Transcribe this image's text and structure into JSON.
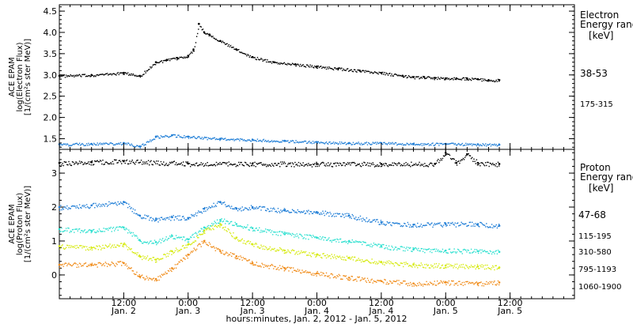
{
  "chart_data": [
    {
      "type": "scatter",
      "ylabel_lines": [
        "ACE EPAM",
        "log(Electron Flux)",
        "[1/(cm²s ster MeV)]"
      ],
      "yticks": [
        "1.5",
        "2.0",
        "2.5",
        "3.0",
        "3.5",
        "4.0",
        "4.5"
      ],
      "ylim": [
        1.25,
        4.65
      ],
      "legend_title": [
        "Electron",
        "Energy range",
        "[keV]"
      ],
      "series": [
        {
          "name": "38-53",
          "color": "#000000",
          "x": [
            0,
            6,
            12,
            15,
            18,
            20,
            22,
            24,
            25,
            26,
            27,
            28,
            30,
            33,
            36,
            40,
            44,
            48,
            52,
            56,
            60,
            64,
            66,
            68,
            70,
            72,
            74,
            76,
            78,
            80,
            82
          ],
          "y": [
            2.98,
            3.0,
            3.05,
            2.98,
            3.3,
            3.35,
            3.4,
            3.45,
            3.6,
            4.2,
            4.0,
            3.95,
            3.8,
            3.6,
            3.42,
            3.3,
            3.25,
            3.2,
            3.15,
            3.1,
            3.05,
            2.98,
            2.95,
            2.95,
            2.93,
            2.92,
            2.92,
            2.92,
            2.9,
            2.88,
            2.88
          ]
        },
        {
          "name": "175-315",
          "color": "#1e7dd6",
          "x": [
            0,
            6,
            12,
            15,
            18,
            21,
            24,
            30,
            36,
            42,
            48,
            54,
            60,
            66,
            72,
            78,
            82
          ],
          "y": [
            1.37,
            1.38,
            1.4,
            1.32,
            1.55,
            1.58,
            1.55,
            1.5,
            1.48,
            1.45,
            1.42,
            1.4,
            1.4,
            1.38,
            1.38,
            1.37,
            1.36
          ]
        }
      ]
    },
    {
      "type": "scatter",
      "ylabel_lines": [
        "ACE EPAM",
        "log(Proton Flux)",
        "[1/(cm²s ster MeV)]"
      ],
      "yticks": [
        "0",
        "1",
        "2",
        "3"
      ],
      "ylim": [
        -0.7,
        3.7
      ],
      "legend_title": [
        "Proton",
        "Energy range",
        "[keV]"
      ],
      "series": [
        {
          "name": "47-68",
          "color": "#000000",
          "x": [
            0,
            6,
            12,
            24,
            36,
            48,
            60,
            70,
            72,
            74,
            76,
            78,
            82
          ],
          "y": [
            3.3,
            3.32,
            3.35,
            3.28,
            3.28,
            3.27,
            3.27,
            3.27,
            3.6,
            3.3,
            3.55,
            3.3,
            3.27
          ]
        },
        {
          "name": "115-195",
          "color": "#1e7dd6",
          "x": [
            0,
            6,
            12,
            15,
            18,
            21,
            24,
            27,
            30,
            33,
            36,
            42,
            48,
            54,
            60,
            66,
            72,
            78,
            82
          ],
          "y": [
            2.0,
            2.05,
            2.15,
            1.75,
            1.62,
            1.7,
            1.68,
            1.95,
            2.15,
            1.95,
            2.0,
            1.9,
            1.85,
            1.75,
            1.55,
            1.48,
            1.5,
            1.5,
            1.45
          ]
        },
        {
          "name": "310-580",
          "color": "#2ee0d0",
          "x": [
            0,
            6,
            12,
            15,
            18,
            21,
            24,
            27,
            30,
            33,
            36,
            42,
            48,
            54,
            60,
            66,
            72,
            78,
            82
          ],
          "y": [
            1.35,
            1.3,
            1.4,
            1.02,
            0.97,
            1.15,
            1.05,
            1.4,
            1.62,
            1.5,
            1.38,
            1.2,
            1.1,
            1.0,
            0.85,
            0.75,
            0.72,
            0.7,
            0.68
          ]
        },
        {
          "name": "795-1193",
          "color": "#d6ea10",
          "x": [
            0,
            6,
            12,
            15,
            18,
            21,
            24,
            27,
            30,
            33,
            36,
            42,
            48,
            54,
            60,
            66,
            72,
            78,
            82
          ],
          "y": [
            0.85,
            0.8,
            0.9,
            0.55,
            0.45,
            0.7,
            0.9,
            1.3,
            1.5,
            1.1,
            0.9,
            0.72,
            0.6,
            0.5,
            0.38,
            0.3,
            0.28,
            0.25,
            0.22
          ]
        },
        {
          "name": "1060-1900",
          "color": "#f08c1a",
          "x": [
            0,
            6,
            12,
            15,
            18,
            21,
            24,
            27,
            30,
            33,
            36,
            42,
            48,
            54,
            60,
            66,
            72,
            78,
            82
          ],
          "y": [
            0.3,
            0.3,
            0.35,
            -0.05,
            -0.12,
            0.2,
            0.6,
            1.0,
            0.7,
            0.55,
            0.35,
            0.2,
            0.05,
            -0.08,
            -0.18,
            -0.25,
            -0.22,
            -0.25,
            -0.22
          ]
        }
      ]
    }
  ],
  "time_axis": {
    "xlim": [
      0,
      96
    ],
    "major_ticks": [
      0,
      12,
      24,
      36,
      48,
      60,
      72,
      84,
      96
    ],
    "labels": [
      {
        "x": 12,
        "time": "12:00",
        "date": "Jan. 2"
      },
      {
        "x": 24,
        "time": "0:00",
        "date": "Jan. 3"
      },
      {
        "x": 36,
        "time": "12:00",
        "date": "Jan. 3"
      },
      {
        "x": 48,
        "time": "0:00",
        "date": "Jan. 4"
      },
      {
        "x": 60,
        "time": "12:00",
        "date": "Jan. 4"
      },
      {
        "x": 72,
        "time": "0:00",
        "date": "Jan. 5"
      },
      {
        "x": 84,
        "time": "12:00",
        "date": "Jan. 5"
      }
    ],
    "caption": "hours:minutes, Jan.  2, 2012 - Jan.  5, 2012"
  }
}
